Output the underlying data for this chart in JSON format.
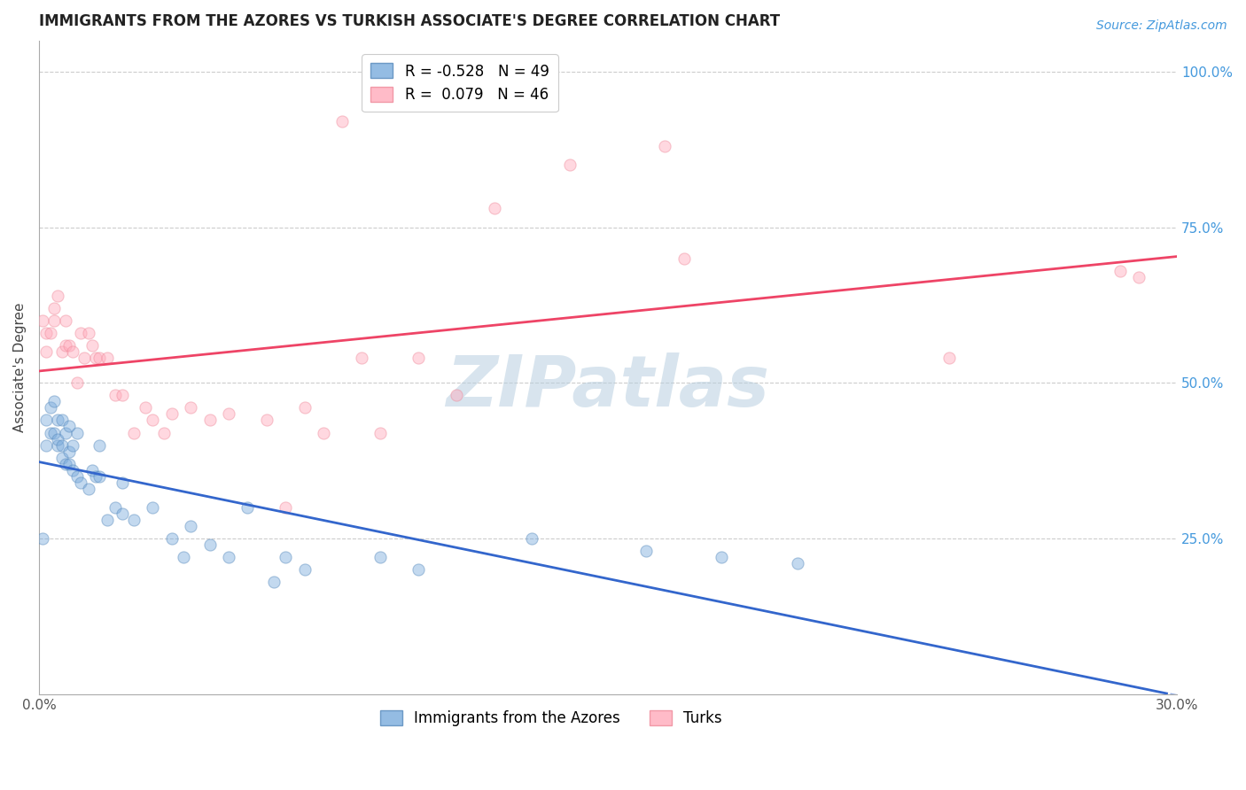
{
  "title": "IMMIGRANTS FROM THE AZORES VS TURKISH ASSOCIATE'S DEGREE CORRELATION CHART",
  "source": "Source: ZipAtlas.com",
  "ylabel": "Associate's Degree",
  "xlim": [
    0.0,
    0.3
  ],
  "ylim": [
    0.0,
    1.05
  ],
  "grid_color": "#cccccc",
  "background_color": "#ffffff",
  "watermark": "ZIPatlas",
  "watermark_color": "#b8cfe0",
  "legend_r1": "R = -0.528",
  "legend_n1": "N = 49",
  "legend_r2": "R =  0.079",
  "legend_n2": "N = 46",
  "series1_color": "#7aabdd",
  "series1_edge": "#5588bb",
  "series2_color": "#ffaabb",
  "series2_edge": "#ee8899",
  "line1_color": "#3366cc",
  "line2_color": "#ee4466",
  "blue_x": [
    0.001,
    0.002,
    0.002,
    0.003,
    0.003,
    0.004,
    0.004,
    0.005,
    0.005,
    0.005,
    0.006,
    0.006,
    0.006,
    0.007,
    0.007,
    0.008,
    0.008,
    0.008,
    0.009,
    0.009,
    0.01,
    0.01,
    0.011,
    0.013,
    0.014,
    0.015,
    0.016,
    0.016,
    0.018,
    0.02,
    0.022,
    0.022,
    0.025,
    0.03,
    0.035,
    0.038,
    0.04,
    0.045,
    0.05,
    0.055,
    0.062,
    0.065,
    0.07,
    0.09,
    0.1,
    0.13,
    0.16,
    0.18,
    0.2
  ],
  "blue_y": [
    0.25,
    0.4,
    0.44,
    0.42,
    0.46,
    0.42,
    0.47,
    0.4,
    0.41,
    0.44,
    0.38,
    0.4,
    0.44,
    0.37,
    0.42,
    0.37,
    0.39,
    0.43,
    0.36,
    0.4,
    0.35,
    0.42,
    0.34,
    0.33,
    0.36,
    0.35,
    0.35,
    0.4,
    0.28,
    0.3,
    0.29,
    0.34,
    0.28,
    0.3,
    0.25,
    0.22,
    0.27,
    0.24,
    0.22,
    0.3,
    0.18,
    0.22,
    0.2,
    0.22,
    0.2,
    0.25,
    0.23,
    0.22,
    0.21
  ],
  "pink_x": [
    0.001,
    0.002,
    0.002,
    0.003,
    0.004,
    0.004,
    0.005,
    0.006,
    0.007,
    0.007,
    0.008,
    0.009,
    0.01,
    0.011,
    0.012,
    0.013,
    0.014,
    0.015,
    0.016,
    0.018,
    0.02,
    0.022,
    0.025,
    0.028,
    0.03,
    0.033,
    0.035,
    0.04,
    0.045,
    0.05,
    0.06,
    0.065,
    0.07,
    0.075,
    0.08,
    0.085,
    0.09,
    0.1,
    0.11,
    0.12,
    0.14,
    0.165,
    0.17,
    0.24,
    0.285,
    0.29
  ],
  "pink_y": [
    0.6,
    0.55,
    0.58,
    0.58,
    0.62,
    0.6,
    0.64,
    0.55,
    0.56,
    0.6,
    0.56,
    0.55,
    0.5,
    0.58,
    0.54,
    0.58,
    0.56,
    0.54,
    0.54,
    0.54,
    0.48,
    0.48,
    0.42,
    0.46,
    0.44,
    0.42,
    0.45,
    0.46,
    0.44,
    0.45,
    0.44,
    0.3,
    0.46,
    0.42,
    0.92,
    0.54,
    0.42,
    0.54,
    0.48,
    0.78,
    0.85,
    0.88,
    0.7,
    0.54,
    0.68,
    0.67
  ],
  "title_fontsize": 12,
  "axis_label_fontsize": 11,
  "tick_fontsize": 11,
  "source_fontsize": 10,
  "legend_fontsize": 12,
  "marker_size": 90,
  "marker_alpha": 0.45,
  "line_width": 2.0,
  "right_tick_color": "#4499dd",
  "axis_color": "#aaaaaa",
  "title_color": "#222222",
  "ylabel_color": "#444444"
}
